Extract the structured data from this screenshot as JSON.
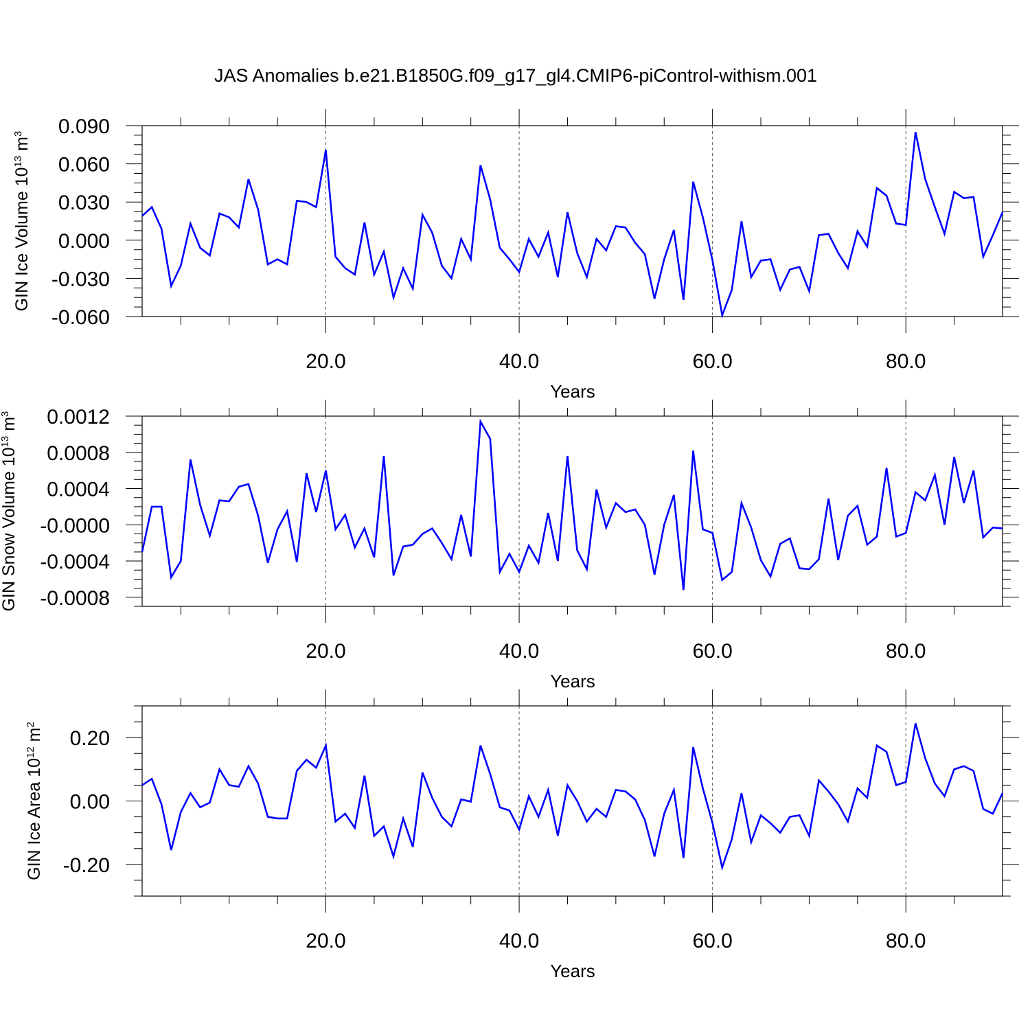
{
  "title": "JAS Anomalies b.e21.B1850G.f09_g17_gl4.CMIP6-piControl-withism.001",
  "chart_data": [
    {
      "type": "line",
      "ylabel": "GIN Ice Volume 10",
      "ylabel_exp": "13",
      "ylabel_unit": " m",
      "ylabel_unit_exp": "3",
      "xlabel": "Years",
      "xlim": [
        1,
        90
      ],
      "ylim": [
        -0.06,
        0.09
      ],
      "x_ticks": [
        20,
        40,
        60,
        80
      ],
      "x_tick_labels": [
        "20.0",
        "40.0",
        "60.0",
        "80.0"
      ],
      "y_ticks": [
        -0.06,
        -0.03,
        0.0,
        0.03,
        0.06,
        0.09
      ],
      "y_tick_labels": [
        "-0.060",
        "-0.030",
        "0.000",
        "0.030",
        "0.060",
        "0.090"
      ],
      "grid": "vertical dashed at major x ticks",
      "color": "#0000ff",
      "series": [
        {
          "values": [
            0.019,
            0.026,
            0.009,
            -0.036,
            -0.02,
            0.013,
            -0.006,
            -0.012,
            0.021,
            0.018,
            0.01,
            0.048,
            0.024,
            -0.019,
            -0.015,
            -0.019,
            0.031,
            0.03,
            0.026,
            0.071,
            -0.013,
            -0.022,
            -0.027,
            0.014,
            -0.027,
            -0.009,
            -0.045,
            -0.022,
            -0.038,
            0.02,
            0.006,
            -0.02,
            -0.03,
            0.001,
            -0.015,
            0.059,
            0.032,
            -0.006,
            -0.015,
            -0.025,
            0.001,
            -0.013,
            0.006,
            -0.029,
            0.022,
            -0.01,
            -0.029,
            0.001,
            -0.008,
            0.011,
            0.01,
            -0.002,
            -0.011,
            -0.046,
            -0.015,
            0.008,
            -0.047,
            0.046,
            0.018,
            -0.016,
            -0.059,
            -0.039,
            0.015,
            -0.029,
            -0.016,
            -0.015,
            -0.039,
            -0.023,
            -0.021,
            -0.04,
            0.004,
            0.005,
            -0.01,
            -0.022,
            0.007,
            -0.005,
            0.041,
            0.035,
            0.013,
            0.012,
            0.085,
            0.048,
            0.026,
            0.005,
            0.038,
            0.033,
            0.034,
            -0.013,
            0.004,
            0.022
          ]
        }
      ]
    },
    {
      "type": "line",
      "ylabel": "GIN Snow Volume 10",
      "ylabel_exp": "13",
      "ylabel_unit": " m",
      "ylabel_unit_exp": "3",
      "xlabel": "Years",
      "xlim": [
        1,
        90
      ],
      "ylim": [
        -0.0009,
        0.0012
      ],
      "x_ticks": [
        20,
        40,
        60,
        80
      ],
      "x_tick_labels": [
        "20.0",
        "40.0",
        "60.0",
        "80.0"
      ],
      "y_ticks": [
        -0.0008,
        -0.0004,
        0.0,
        0.0004,
        0.0008,
        0.0012
      ],
      "y_tick_labels": [
        "-0.0008",
        "-0.0004",
        "-0.0000",
        "0.0004",
        "0.0008",
        "0.0012"
      ],
      "grid": "vertical dashed at major x ticks",
      "color": "#0000ff",
      "series": [
        {
          "values": [
            -0.0003,
            0.0002,
            0.0002,
            -0.00058,
            -0.0004,
            0.00072,
            0.00022,
            -0.00012,
            0.00027,
            0.00026,
            0.00042,
            0.00045,
            0.0001,
            -0.00042,
            -5e-05,
            0.00015,
            -0.00041,
            0.00057,
            0.00014,
            0.0006,
            -5e-05,
            0.00011,
            -0.00025,
            -4e-05,
            -0.00036,
            0.00076,
            -0.00056,
            -0.00024,
            -0.00022,
            -0.0001,
            -4e-05,
            -0.0002,
            -0.00038,
            0.00011,
            -0.00035,
            0.00114,
            0.00095,
            -0.00052,
            -0.00032,
            -0.00052,
            -0.00023,
            -0.00042,
            0.00013,
            -0.0004,
            0.00076,
            -0.00028,
            -0.00049,
            0.00039,
            -3e-05,
            0.00024,
            0.00014,
            0.00017,
            0.0,
            -0.00055,
            0.0,
            0.00033,
            -0.00072,
            0.00082,
            -5e-05,
            -9e-05,
            -0.00061,
            -0.00052,
            0.00024,
            -3e-05,
            -0.00039,
            -0.00057,
            -0.00021,
            -0.00015,
            -0.00048,
            -0.00049,
            -0.00038,
            0.00029,
            -0.00039,
            0.0001,
            0.00021,
            -0.00022,
            -0.00013,
            0.00063,
            -0.00013,
            -9e-05,
            0.00036,
            0.00027,
            0.00055,
            0.0,
            0.00075,
            0.00024,
            0.0006,
            -0.00014,
            -3e-05,
            -4e-05
          ]
        }
      ]
    },
    {
      "type": "line",
      "ylabel": "GIN Ice Area 10",
      "ylabel_exp": "12",
      "ylabel_unit": " m",
      "ylabel_unit_exp": "2",
      "xlabel": "Years",
      "xlim": [
        1,
        90
      ],
      "ylim": [
        -0.3,
        0.3
      ],
      "x_ticks": [
        20,
        40,
        60,
        80
      ],
      "x_tick_labels": [
        "20.0",
        "40.0",
        "60.0",
        "80.0"
      ],
      "y_ticks": [
        -0.2,
        0.0,
        0.2
      ],
      "y_tick_labels": [
        "-0.20",
        "0.00",
        "0.20"
      ],
      "grid": "vertical dashed at major x ticks",
      "color": "#0000ff",
      "series": [
        {
          "values": [
            0.05,
            0.07,
            -0.01,
            -0.155,
            -0.035,
            0.025,
            -0.02,
            -0.005,
            0.1,
            0.05,
            0.045,
            0.11,
            0.055,
            -0.05,
            -0.055,
            -0.055,
            0.095,
            0.13,
            0.105,
            0.175,
            -0.065,
            -0.04,
            -0.085,
            0.08,
            -0.11,
            -0.08,
            -0.175,
            -0.055,
            -0.145,
            0.09,
            0.01,
            -0.05,
            -0.08,
            0.005,
            -0.002,
            0.175,
            0.085,
            -0.02,
            -0.03,
            -0.09,
            0.015,
            -0.05,
            0.035,
            -0.11,
            0.05,
            0.0,
            -0.065,
            -0.025,
            -0.05,
            0.035,
            0.03,
            0.005,
            -0.06,
            -0.175,
            -0.04,
            0.035,
            -0.18,
            0.17,
            0.04,
            -0.07,
            -0.21,
            -0.12,
            0.025,
            -0.13,
            -0.045,
            -0.07,
            -0.1,
            -0.05,
            -0.045,
            -0.11,
            0.065,
            0.03,
            -0.01,
            -0.065,
            0.04,
            0.01,
            0.175,
            0.155,
            0.05,
            0.06,
            0.245,
            0.135,
            0.055,
            0.015,
            0.1,
            0.11,
            0.095,
            -0.025,
            -0.04,
            0.025
          ]
        }
      ]
    }
  ]
}
